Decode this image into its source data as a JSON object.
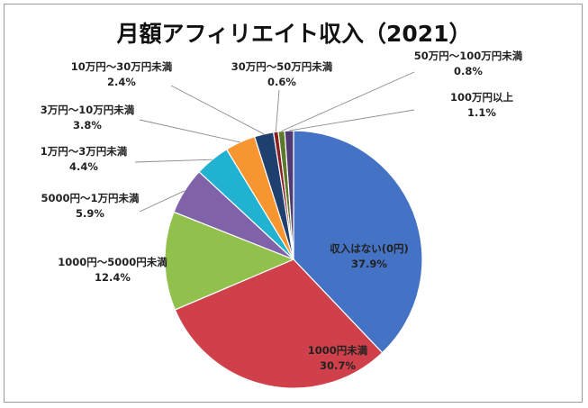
{
  "chart_data": {
    "type": "pie",
    "title": "月額アフィリエイト収入（2021）",
    "slices": [
      {
        "label": "収入はない(0円)",
        "percent_label": "37.9%",
        "value": 37.9,
        "color": "#4472c4"
      },
      {
        "label": "1000円未満",
        "percent_label": "30.7%",
        "value": 30.7,
        "color": "#d0404a"
      },
      {
        "label": "1000円～5000円未満",
        "percent_label": "12.4%",
        "value": 12.4,
        "color": "#92c04d"
      },
      {
        "label": "5000円～1万円未満",
        "percent_label": "5.9%",
        "value": 5.9,
        "color": "#8062a8"
      },
      {
        "label": "1万円～3万円未満",
        "percent_label": "4.4%",
        "value": 4.4,
        "color": "#21b2d2"
      },
      {
        "label": "3万円～10万円未満",
        "percent_label": "3.8%",
        "value": 3.8,
        "color": "#f79530"
      },
      {
        "label": "10万円～30万円未満",
        "percent_label": "2.4%",
        "value": 2.4,
        "color": "#1f3f6e"
      },
      {
        "label": "30万円～50万円未満",
        "percent_label": "0.6%",
        "value": 0.6,
        "color": "#8a1d22"
      },
      {
        "label": "50万円～100万円未満",
        "percent_label": "0.8%",
        "value": 0.8,
        "color": "#5d7a2c"
      },
      {
        "label": "100万円以上",
        "percent_label": "1.1%",
        "value": 1.1,
        "color": "#4f3a73"
      }
    ]
  }
}
